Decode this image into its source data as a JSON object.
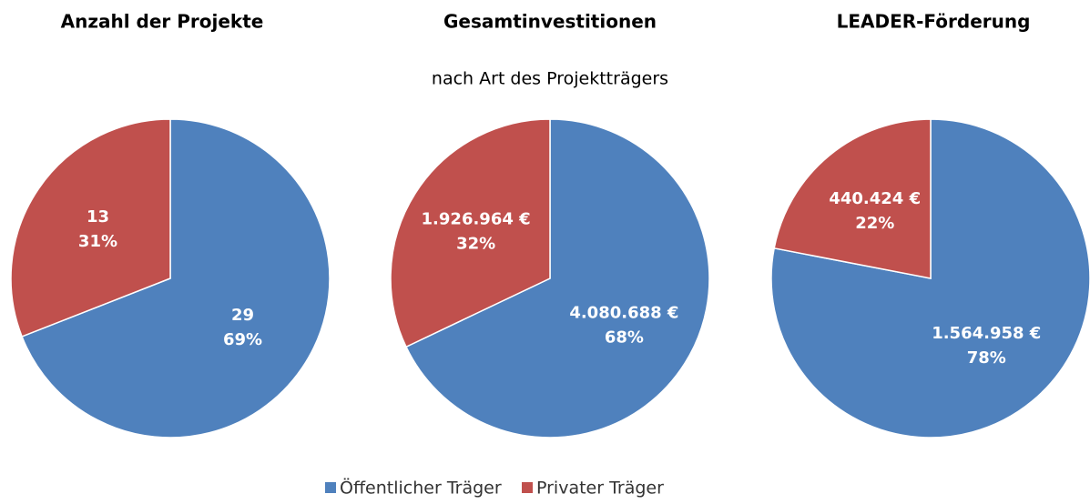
{
  "subtitle": "nach Art des Projektträgers",
  "chart_data": [
    {
      "type": "pie",
      "title": "Anzahl der Projekte",
      "categories": [
        "Öffentlicher Träger",
        "Privater Träger"
      ],
      "colors": [
        "#4f81bd",
        "#c0504d"
      ],
      "values": [
        29,
        13
      ],
      "percentages": [
        69,
        31
      ],
      "percentage_labels": [
        "69%",
        "31%"
      ]
    },
    {
      "type": "pie",
      "title": "Gesamtinvestitionen",
      "categories": [
        "Öffentlicher Träger",
        "Privater Träger"
      ],
      "colors": [
        "#4f81bd",
        "#c0504d"
      ],
      "values": [
        4080688,
        1926964
      ],
      "value_labels": [
        "4.080.688 €",
        "1.926.964 €"
      ],
      "percentages": [
        68,
        32
      ],
      "percentage_labels": [
        "68%",
        "32%"
      ]
    },
    {
      "type": "pie",
      "title": "LEADER-Förderung",
      "categories": [
        "Öffentlicher Träger",
        "Privater Träger"
      ],
      "colors": [
        "#4f81bd",
        "#c0504d"
      ],
      "values": [
        1564958,
        440424
      ],
      "value_labels": [
        "1.564.958 €",
        "440.424 €"
      ],
      "percentages": [
        78,
        22
      ],
      "percentage_labels": [
        "78%",
        "22%"
      ]
    }
  ]
}
